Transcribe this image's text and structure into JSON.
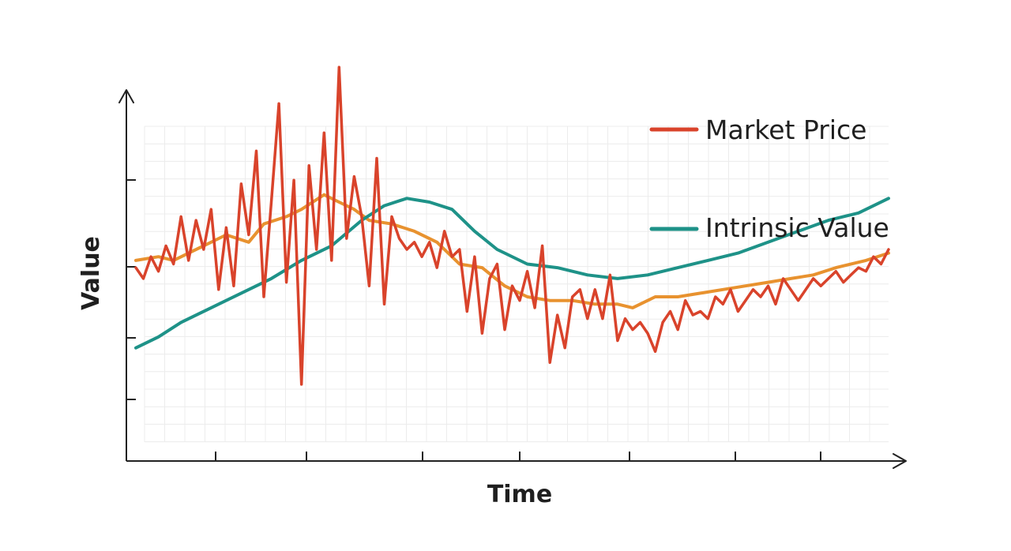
{
  "chart_data": {
    "type": "line",
    "title": "",
    "xlabel": "Time",
    "ylabel": "Value",
    "xlim": [
      0,
      100
    ],
    "ylim": [
      0,
      100
    ],
    "grid": true,
    "legend": "right",
    "series": [
      {
        "name": "Market Price",
        "color": "#d9432b",
        "x": [
          0,
          1,
          2,
          3,
          4,
          5,
          6,
          7,
          8,
          9,
          10,
          11,
          12,
          13,
          14,
          15,
          16,
          17,
          18,
          19,
          20,
          21,
          22,
          23,
          24,
          25,
          26,
          27,
          28,
          29,
          30,
          31,
          32,
          33,
          34,
          35,
          36,
          37,
          38,
          39,
          40,
          41,
          42,
          43,
          44,
          45,
          46,
          47,
          48,
          49,
          50,
          51,
          52,
          53,
          54,
          55,
          56,
          57,
          58,
          59,
          60,
          61,
          62,
          63,
          64,
          65,
          66,
          67,
          68,
          69,
          70,
          71,
          72,
          73,
          74,
          75,
          76,
          77,
          78,
          79,
          80,
          81,
          82,
          83,
          84,
          85,
          86,
          87,
          88,
          89,
          90,
          91,
          92,
          93,
          94,
          95,
          96,
          97,
          98,
          99,
          100
        ],
        "values": [
          50,
          47,
          53,
          49,
          56,
          51,
          64,
          52,
          63,
          55,
          66,
          44,
          61,
          45,
          73,
          59,
          82,
          42,
          68,
          95,
          46,
          74,
          18,
          78,
          55,
          87,
          52,
          105,
          58,
          75,
          64,
          45,
          80,
          40,
          64,
          58,
          55,
          57,
          53,
          57,
          50,
          60,
          53,
          55,
          38,
          53,
          32,
          47,
          51,
          33,
          45,
          41,
          49,
          39,
          56,
          24,
          37,
          28,
          42,
          44,
          36,
          44,
          36,
          48,
          30,
          36,
          33,
          35,
          32,
          27,
          35,
          38,
          33,
          41,
          37,
          38,
          36,
          42,
          40,
          44,
          38,
          41,
          44,
          42,
          45,
          40,
          47,
          44,
          41,
          44,
          47,
          45,
          47,
          49,
          46,
          48,
          50,
          49,
          53,
          51,
          55
        ],
        "__y_range_note": null
      },
      {
        "name": "",
        "color": "#e8922f",
        "x": [
          0,
          3,
          5,
          9,
          12,
          15,
          17,
          20,
          22,
          25,
          27,
          29,
          31,
          34,
          37,
          40,
          43,
          46,
          49,
          52,
          55,
          58,
          61,
          64,
          66,
          69,
          72,
          75,
          78,
          81,
          84,
          87,
          90,
          93,
          97,
          100
        ],
        "values": [
          52,
          53,
          52,
          56,
          59,
          57,
          62,
          64,
          66,
          70,
          68,
          66,
          63,
          62,
          60,
          57,
          51,
          50,
          45,
          42,
          41,
          41,
          40,
          40,
          39,
          42,
          42,
          43,
          44,
          45,
          46,
          47,
          48,
          50,
          52,
          54
        ]
      },
      {
        "name": "Intrinsic Value",
        "color": "#1e9288",
        "x": [
          0,
          3,
          6,
          10,
          14,
          18,
          22,
          26,
          30,
          33,
          36,
          39,
          42,
          45,
          48,
          52,
          56,
          60,
          64,
          68,
          72,
          76,
          80,
          84,
          88,
          92,
          96,
          100
        ],
        "values": [
          28,
          31,
          35,
          39,
          43,
          47,
          52,
          56,
          63,
          67,
          69,
          68,
          66,
          60,
          55,
          51,
          50,
          48,
          47,
          48,
          50,
          52,
          54,
          57,
          60,
          63,
          65,
          69
        ]
      }
    ]
  },
  "legend": {
    "items": [
      "Market Price",
      "Intrinsic Value"
    ]
  },
  "axes": {
    "x_label": "Time",
    "y_label": "Value"
  }
}
